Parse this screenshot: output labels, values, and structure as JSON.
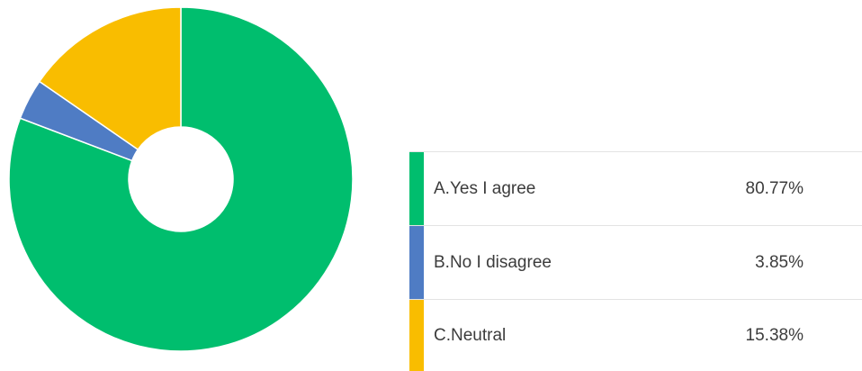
{
  "chart_data": {
    "type": "pie",
    "donut": true,
    "slices": [
      {
        "label": "A.Yes I agree",
        "value": 80.77,
        "display": "80.77%",
        "color": "#00be6e"
      },
      {
        "label": "B.No I disagree",
        "value": 3.85,
        "display": "3.85%",
        "color": "#4f7cc4"
      },
      {
        "label": "C.Neutral",
        "value": 15.38,
        "display": "15.38%",
        "color": "#f9bd00"
      }
    ],
    "legend_position": "right"
  }
}
